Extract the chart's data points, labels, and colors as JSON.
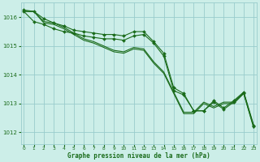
{
  "title": "Graphe pression niveau de la mer (hPa)",
  "background_color": "#cceee8",
  "grid_color": "#99cccc",
  "line_color": "#1a6b1a",
  "text_color": "#1a6b1a",
  "x_labels": [
    "0",
    "1",
    "2",
    "3",
    "4",
    "5",
    "6",
    "7",
    "8",
    "9",
    "10",
    "11",
    "12",
    "13",
    "14",
    "15",
    "16",
    "17",
    "18",
    "19",
    "20",
    "21",
    "22",
    "23"
  ],
  "ylim": [
    1011.6,
    1016.5
  ],
  "yticks": [
    1012,
    1013,
    1014,
    1015,
    1016
  ],
  "hours": [
    0,
    1,
    2,
    3,
    4,
    5,
    6,
    7,
    8,
    9,
    10,
    11,
    12,
    13,
    14,
    15,
    16,
    17,
    18,
    19,
    20,
    21,
    22,
    23
  ],
  "line_marked1": [
    1016.2,
    1015.85,
    1015.75,
    1015.6,
    1015.5,
    1015.45,
    1015.35,
    1015.3,
    1015.25,
    1015.25,
    1015.2,
    1015.35,
    1015.4,
    1015.1,
    1014.65,
    1013.45,
    1013.3,
    1012.75,
    1012.75,
    1013.05,
    1012.8,
    1013.05,
    1013.35,
    1012.2
  ],
  "line_marked2": [
    1016.25,
    1016.2,
    1015.95,
    1015.8,
    1015.7,
    1015.55,
    1015.5,
    1015.45,
    1015.4,
    1015.4,
    1015.35,
    1015.5,
    1015.5,
    1015.15,
    1014.75,
    1013.55,
    1013.35,
    1012.75,
    1012.75,
    1013.1,
    1012.85,
    1013.1,
    1013.4,
    1012.25
  ],
  "line_plain1": [
    1016.2,
    1016.2,
    1015.8,
    1015.75,
    1015.6,
    1015.4,
    1015.2,
    1015.1,
    1014.95,
    1014.8,
    1014.75,
    1014.9,
    1014.85,
    1014.4,
    1014.05,
    1013.35,
    1012.65,
    1012.65,
    1013.0,
    1012.85,
    1013.0,
    1013.0,
    1013.35,
    1012.15
  ],
  "line_plain2": [
    1016.2,
    1016.2,
    1015.85,
    1015.8,
    1015.65,
    1015.45,
    1015.25,
    1015.15,
    1015.0,
    1014.85,
    1014.8,
    1014.95,
    1014.9,
    1014.45,
    1014.1,
    1013.4,
    1012.7,
    1012.7,
    1013.05,
    1012.9,
    1013.05,
    1013.05,
    1013.4,
    1012.2
  ]
}
